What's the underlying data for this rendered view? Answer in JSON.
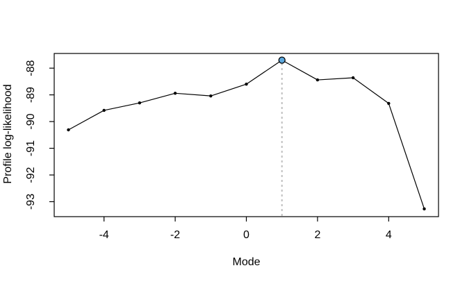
{
  "chart_data": {
    "type": "line",
    "title": "",
    "xlabel": "Mode",
    "ylabel": "Profile log-likelihood",
    "x": [
      -5,
      -4,
      -3,
      -2,
      -1,
      0,
      1,
      2,
      3,
      4,
      5
    ],
    "y": [
      -90.31,
      -89.58,
      -89.3,
      -88.94,
      -89.04,
      -88.6,
      -87.7,
      -88.44,
      -88.36,
      -89.32,
      -93.27
    ],
    "x_ticks": [
      -4,
      -2,
      0,
      2,
      4
    ],
    "y_ticks": [
      -88,
      -89,
      -90,
      -91,
      -92,
      -93
    ],
    "xlim": [
      -5.4,
      5.4
    ],
    "ylim": [
      -93.56,
      -87.45
    ],
    "grid": false,
    "legend": null,
    "line_color": "#000000",
    "marker_color": "#000000",
    "background": "#ffffff",
    "peak": {
      "x": 1,
      "y": -87.7,
      "marker_fill": "#5ca7dc",
      "marker_stroke": "#000000"
    },
    "vline": {
      "x": 1,
      "color": "#bfbfbf",
      "style": "dotted"
    }
  }
}
